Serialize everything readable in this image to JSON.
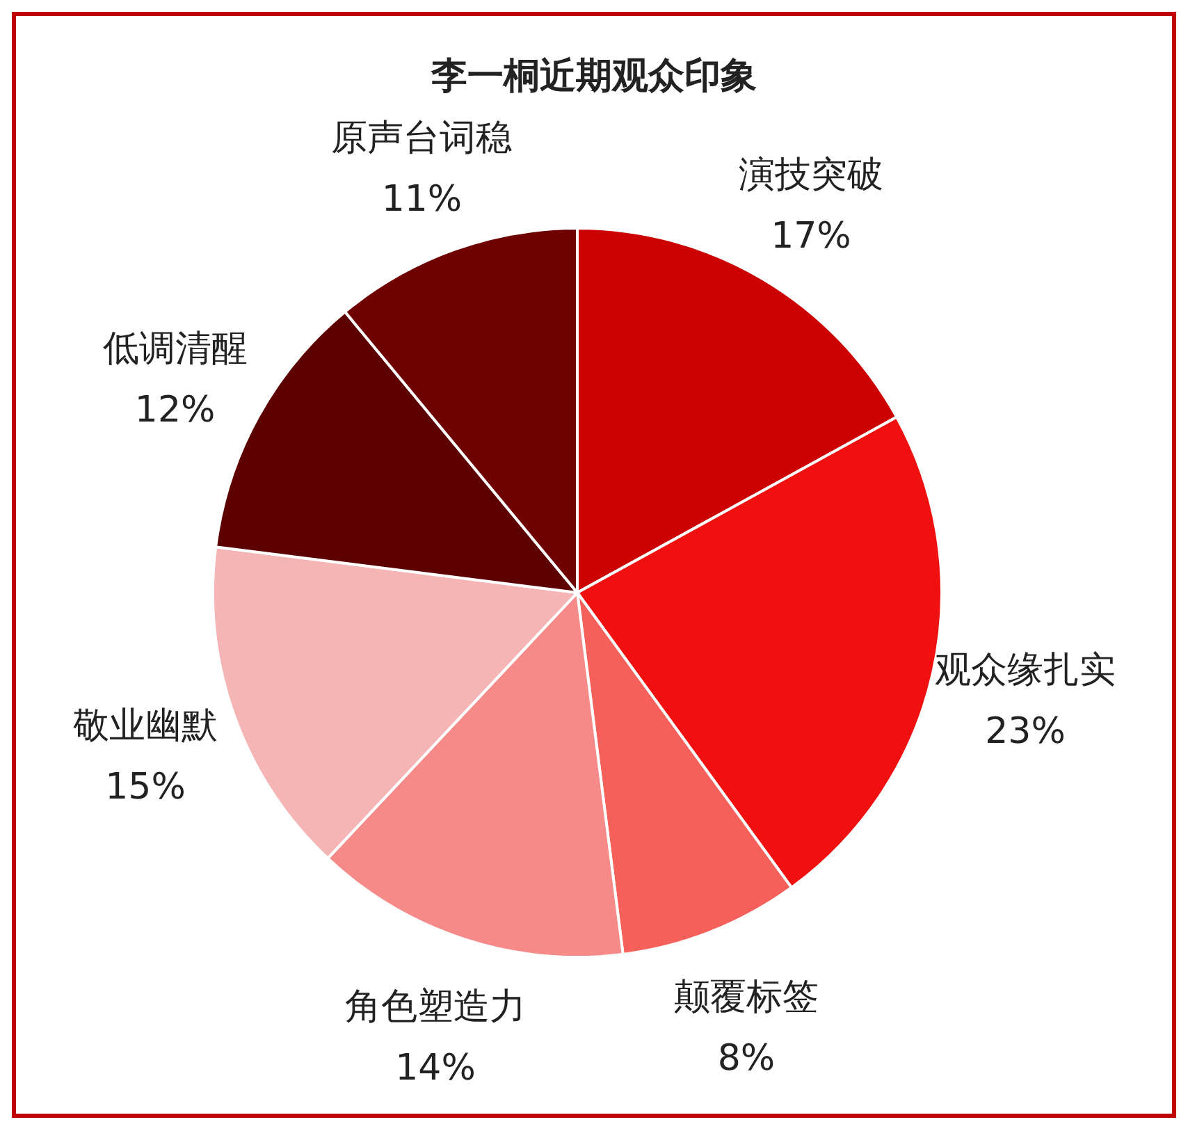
{
  "chart_data": {
    "type": "pie",
    "title": "李一桐近期观众印象",
    "categories": [
      "演技突破",
      "观众缘扎实",
      "颠覆标签",
      "角色塑造力",
      "敬业幽默",
      "低调清醒",
      "原声台词稳"
    ],
    "values": [
      17,
      23,
      8,
      14,
      15,
      12,
      11
    ],
    "value_labels": [
      "17%",
      "23%",
      "8%",
      "14%",
      "15%",
      "12%",
      "11%"
    ],
    "colors": [
      "#cc0000",
      "#f01010",
      "#f5605a",
      "#f58a88",
      "#f5b5b5",
      "#5c0000",
      "#6e0000"
    ]
  }
}
